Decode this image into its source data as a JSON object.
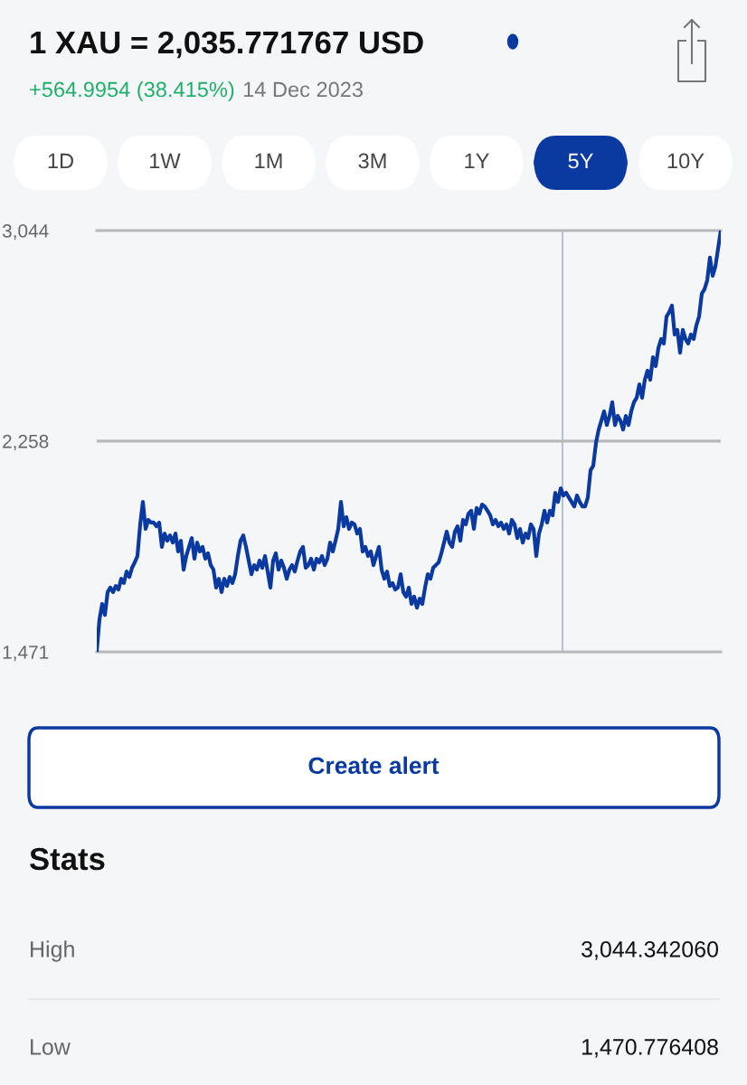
{
  "chart_data": {
    "type": "line",
    "title": "1 XAU = 2,035.771767 USD",
    "subtitle": "+564.9954 (38.415%)",
    "categories": [
      null,
      null,
      null,
      null,
      null,
      null,
      null,
      null,
      null,
      null,
      null,
      null,
      null,
      null,
      null,
      null,
      null,
      null,
      null,
      null,
      null,
      null,
      null,
      null,
      null,
      null,
      null,
      null,
      null,
      null,
      null,
      null,
      null,
      null,
      null,
      null,
      null,
      null,
      null,
      null,
      null,
      null,
      null,
      null,
      null,
      null,
      null,
      null,
      null,
      null,
      null,
      null,
      null,
      null,
      null,
      null,
      null,
      null,
      null,
      null,
      null,
      null,
      null,
      null,
      null,
      null,
      null,
      null,
      null,
      null,
      null,
      null,
      null,
      null,
      null,
      null,
      null,
      null,
      null,
      null,
      null,
      null,
      null,
      null,
      null,
      null,
      null,
      null,
      null,
      null,
      null,
      null,
      null,
      null,
      null,
      null,
      null,
      null,
      null,
      null,
      null,
      null,
      null,
      null,
      null,
      null,
      null,
      null,
      null,
      null,
      null,
      null,
      null,
      null,
      null,
      null,
      null,
      null,
      null,
      null,
      null,
      null,
      null,
      null,
      null,
      null,
      null,
      null,
      null,
      null,
      null,
      null,
      null,
      null,
      null,
      null,
      null,
      null,
      null,
      null,
      null,
      null,
      null,
      null,
      null,
      null,
      null,
      null,
      null,
      null,
      null,
      null,
      null,
      null,
      null,
      null,
      null,
      null,
      null,
      null,
      null,
      null,
      null,
      null,
      null,
      null,
      null,
      null,
      null,
      null,
      null,
      null,
      null,
      null,
      null,
      null,
      null,
      null,
      null,
      null,
      null,
      null,
      null,
      null,
      null,
      null,
      null,
      null,
      null,
      null,
      null,
      null,
      null,
      null,
      null,
      null,
      null,
      null,
      null,
      null,
      null,
      null,
      null,
      null,
      null,
      null,
      null,
      null,
      null,
      null,
      null,
      null,
      null,
      null,
      null,
      null,
      null,
      null,
      null,
      null,
      null,
      null,
      null,
      null,
      null,
      null,
      null,
      null,
      null,
      null,
      null
    ],
    "series": [
      {
        "color": "#0a3aa0",
        "values": [
          1474,
          1593,
          1650,
          1609,
          1694,
          1711,
          1694,
          1717,
          1704,
          1744,
          1728,
          1771,
          1751,
          1785,
          1805,
          1829,
          1947,
          2031,
          1930,
          1964,
          1954,
          1954,
          1940,
          1954,
          1863,
          1913,
          1886,
          1906,
          1879,
          1913,
          1846,
          1886,
          1778,
          1829,
          1863,
          1896,
          1819,
          1879,
          1846,
          1863,
          1819,
          1839,
          1795,
          1778,
          1711,
          1744,
          1694,
          1744,
          1717,
          1751,
          1728,
          1761,
          1829,
          1886,
          1906,
          1863,
          1812,
          1761,
          1795,
          1778,
          1812,
          1785,
          1829,
          1771,
          1711,
          1812,
          1839,
          1778,
          1812,
          1785,
          1744,
          1778,
          1795,
          1771,
          1812,
          1846,
          1863,
          1785,
          1795,
          1819,
          1778,
          1819,
          1805,
          1829,
          1795,
          1819,
          1879,
          1846,
          1886,
          1930,
          2031,
          1940,
          1974,
          1930,
          1954,
          1947,
          1913,
          1930,
          1846,
          1863,
          1829,
          1846,
          1795,
          1829,
          1863,
          1778,
          1744,
          1771,
          1717,
          1728,
          1704,
          1711,
          1761,
          1694,
          1677,
          1711,
          1650,
          1677,
          1636,
          1670,
          1650,
          1711,
          1761,
          1744,
          1785,
          1795,
          1805,
          1839,
          1879,
          1920,
          1879,
          1863,
          1920,
          1940,
          1886,
          1964,
          1947,
          1987,
          1998,
          1930,
          2008,
          1987,
          2021,
          2014,
          1998,
          1981,
          1947,
          1964,
          1940,
          1954,
          1930,
          1947,
          1913,
          1964,
          1947,
          1896,
          1930,
          1879,
          1913,
          1896,
          1947,
          1930,
          1829,
          1913,
          1947,
          1998,
          1954,
          1998,
          1981,
          2065,
          2031,
          2082,
          2055,
          2065,
          2048,
          2031,
          2014,
          2055,
          2031,
          2014,
          2014,
          2048,
          2149,
          2166,
          2251,
          2301,
          2335,
          2369,
          2318,
          2352,
          2403,
          2318,
          2352,
          2335,
          2301,
          2352,
          2318,
          2369,
          2403,
          2420,
          2470,
          2420,
          2487,
          2521,
          2487,
          2571,
          2538,
          2605,
          2639,
          2622,
          2723,
          2740,
          2764,
          2656,
          2673,
          2588,
          2673,
          2639,
          2622,
          2656,
          2639,
          2690,
          2723,
          2808,
          2825,
          2858,
          2943,
          2875,
          2909,
          2976,
          3044
        ]
      }
    ],
    "ylim": [
      1471,
      3044
    ],
    "yticks": [
      {
        "value": 1471,
        "label": "1,471"
      },
      {
        "value": 2258,
        "label": "2,258"
      },
      {
        "value": 3044,
        "label": "3,044"
      }
    ],
    "ref_lines": [
      {
        "axis": "y",
        "value": 2258,
        "color": "#b8b8b8"
      }
    ],
    "marker": "none",
    "line_style": "solid",
    "legend": false,
    "annotations": [
      "14 Dec 2023",
      "1D",
      "1W",
      "1M",
      "3M",
      "1Y",
      "5Y",
      "10Y",
      "Create alert",
      "Stats",
      "High",
      "3,044.342060",
      "Low",
      "1,470.776408"
    ]
  }
}
